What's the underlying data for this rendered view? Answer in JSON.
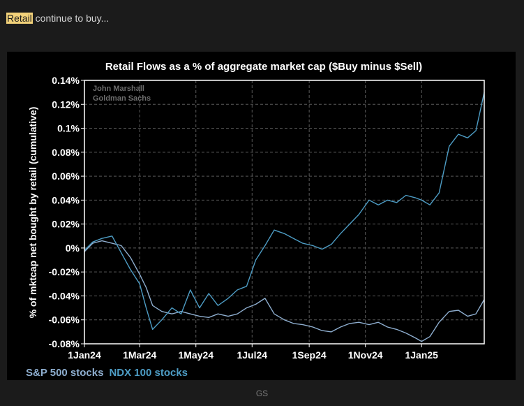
{
  "caption": {
    "highlight": "Retail",
    "rest": " continue to buy..."
  },
  "footer": {
    "source": "GS"
  },
  "chart_data": {
    "type": "line",
    "title": "Retail Flows as a % of aggregate market cap ($Buy minus $Sell)",
    "watermark": [
      "John Marshall",
      "Goldman Sachs"
    ],
    "ylabel": "% of mktcap net bought by retail (cumulative)",
    "xlabel": "",
    "ylim": [
      -0.08,
      0.14
    ],
    "xlim": [
      "2024-01-01",
      "2025-03-10"
    ],
    "y_ticks": [
      {
        "value": 0.14,
        "label": "0.14%"
      },
      {
        "value": 0.12,
        "label": "0.12%"
      },
      {
        "value": 0.1,
        "label": "0.1%"
      },
      {
        "value": 0.08,
        "label": "0.08%"
      },
      {
        "value": 0.06,
        "label": "0.06%"
      },
      {
        "value": 0.04,
        "label": "0.04%"
      },
      {
        "value": 0.02,
        "label": "0.02%"
      },
      {
        "value": 0.0,
        "label": "0%"
      },
      {
        "value": -0.02,
        "label": "-0.02%"
      },
      {
        "value": -0.04,
        "label": "-0.04%"
      },
      {
        "value": -0.06,
        "label": "-0.06%"
      },
      {
        "value": -0.08,
        "label": "-0.08%"
      }
    ],
    "x_ticks": [
      {
        "date": "2024-01-01",
        "label": "1Jan24"
      },
      {
        "date": "2024-03-01",
        "label": "1Mar24"
      },
      {
        "date": "2024-05-01",
        "label": "1May24"
      },
      {
        "date": "2024-07-01",
        "label": "1Jul24"
      },
      {
        "date": "2024-09-01",
        "label": "1Sep24"
      },
      {
        "date": "2024-11-01",
        "label": "1Nov24"
      },
      {
        "date": "2025-01-01",
        "label": "1Jan25"
      }
    ],
    "grid": true,
    "legend_position": "bottom-left",
    "colors": {
      "sp500": "#8eaecf",
      "ndx": "#4d9cc4",
      "background": "#000000",
      "grid": "#5a5a5a",
      "axis": "#ffffff"
    },
    "series": [
      {
        "name": "S&P 500 stocks",
        "x": [
          "2024-01-01",
          "2024-01-10",
          "2024-01-20",
          "2024-01-31",
          "2024-02-10",
          "2024-02-20",
          "2024-03-01",
          "2024-03-08",
          "2024-03-15",
          "2024-03-25",
          "2024-04-05",
          "2024-04-15",
          "2024-04-25",
          "2024-05-05",
          "2024-05-15",
          "2024-05-25",
          "2024-06-05",
          "2024-06-15",
          "2024-06-25",
          "2024-07-05",
          "2024-07-15",
          "2024-07-25",
          "2024-08-05",
          "2024-08-15",
          "2024-08-25",
          "2024-09-05",
          "2024-09-15",
          "2024-09-25",
          "2024-10-05",
          "2024-10-15",
          "2024-10-25",
          "2024-11-05",
          "2024-11-15",
          "2024-11-25",
          "2024-12-05",
          "2024-12-15",
          "2024-12-25",
          "2025-01-01",
          "2025-01-10",
          "2025-01-20",
          "2025-01-31",
          "2025-02-10",
          "2025-02-20",
          "2025-03-01",
          "2025-03-10"
        ],
        "values": [
          -0.003,
          0.004,
          0.006,
          0.004,
          0.002,
          -0.008,
          -0.022,
          -0.033,
          -0.048,
          -0.053,
          -0.055,
          -0.053,
          -0.055,
          -0.057,
          -0.058,
          -0.055,
          -0.057,
          -0.055,
          -0.05,
          -0.047,
          -0.042,
          -0.055,
          -0.06,
          -0.063,
          -0.064,
          -0.066,
          -0.069,
          -0.07,
          -0.066,
          -0.063,
          -0.062,
          -0.064,
          -0.062,
          -0.066,
          -0.068,
          -0.071,
          -0.075,
          -0.078,
          -0.074,
          -0.062,
          -0.053,
          -0.052,
          -0.057,
          -0.055,
          -0.043
        ]
      },
      {
        "name": "NDX 100 stocks",
        "x": [
          "2024-01-01",
          "2024-01-10",
          "2024-01-20",
          "2024-01-31",
          "2024-02-10",
          "2024-02-20",
          "2024-03-01",
          "2024-03-08",
          "2024-03-15",
          "2024-03-25",
          "2024-04-05",
          "2024-04-15",
          "2024-04-25",
          "2024-05-05",
          "2024-05-15",
          "2024-05-25",
          "2024-06-05",
          "2024-06-15",
          "2024-06-25",
          "2024-07-05",
          "2024-07-15",
          "2024-07-25",
          "2024-08-05",
          "2024-08-15",
          "2024-08-25",
          "2024-09-05",
          "2024-09-15",
          "2024-09-25",
          "2024-10-05",
          "2024-10-15",
          "2024-10-25",
          "2024-11-05",
          "2024-11-15",
          "2024-11-25",
          "2024-12-05",
          "2024-12-15",
          "2024-12-25",
          "2025-01-01",
          "2025-01-10",
          "2025-01-20",
          "2025-01-31",
          "2025-02-10",
          "2025-02-20",
          "2025-03-01",
          "2025-03-10"
        ],
        "values": [
          -0.002,
          0.005,
          0.008,
          0.01,
          -0.004,
          -0.018,
          -0.03,
          -0.05,
          -0.068,
          -0.06,
          -0.05,
          -0.055,
          -0.035,
          -0.05,
          -0.038,
          -0.048,
          -0.042,
          -0.035,
          -0.032,
          -0.01,
          0.002,
          0.015,
          0.012,
          0.008,
          0.004,
          0.002,
          -0.001,
          0.003,
          0.012,
          0.02,
          0.028,
          0.04,
          0.036,
          0.04,
          0.038,
          0.044,
          0.042,
          0.04,
          0.036,
          0.046,
          0.085,
          0.095,
          0.092,
          0.098,
          0.13
        ]
      }
    ]
  }
}
